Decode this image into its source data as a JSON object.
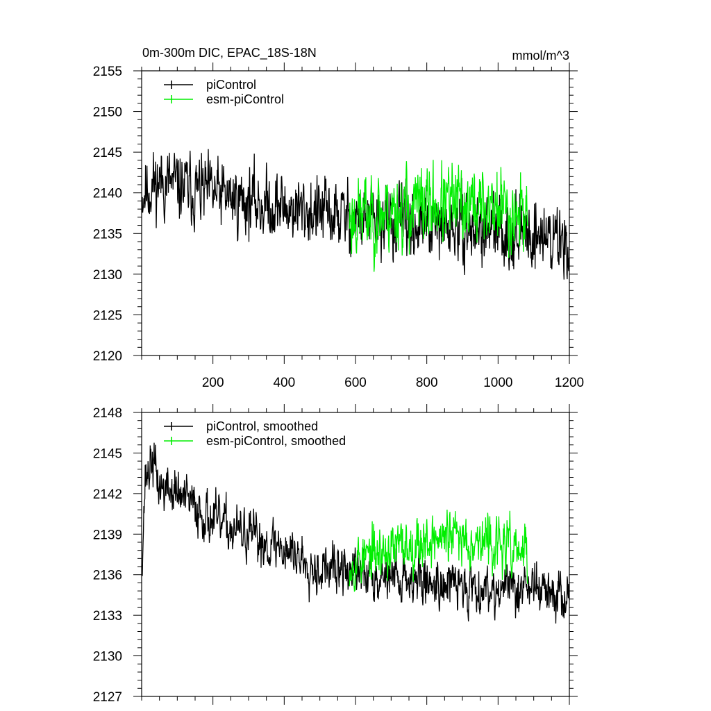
{
  "chart_data": [
    {
      "type": "line",
      "title": "0m-300m DIC, EPAC_18S-18N",
      "units_label": "mmol/m^3",
      "xlim": [
        0,
        1200
      ],
      "ylim": [
        2120,
        2155
      ],
      "x_ticks": [
        200,
        400,
        600,
        800,
        1000,
        1200
      ],
      "x_tick_labels": [
        "200",
        "400",
        "600",
        "800",
        "1000",
        "1200"
      ],
      "y_ticks": [
        2120,
        2125,
        2130,
        2135,
        2140,
        2145,
        2150,
        2155
      ],
      "y_tick_labels": [
        "2120",
        "2125",
        "2130",
        "2135",
        "2140",
        "2145",
        "2150",
        "2155"
      ],
      "legend_position": "top-left",
      "grid": false,
      "series": [
        {
          "name": "piControl",
          "color": "#000000",
          "x": [
            1,
            1200
          ],
          "anchors": [
            [
              1,
              2140
            ],
            [
              50,
              2141.5
            ],
            [
              100,
              2140.8
            ],
            [
              200,
              2139.8
            ],
            [
              300,
              2139
            ],
            [
              400,
              2138.2
            ],
            [
              500,
              2137.5
            ],
            [
              600,
              2136.8
            ],
            [
              700,
              2136.3
            ],
            [
              800,
              2135.8
            ],
            [
              900,
              2135.5
            ],
            [
              1000,
              2135.2
            ],
            [
              1100,
              2135
            ],
            [
              1200,
              2134
            ]
          ],
          "amplitude": 6,
          "seed": 11
        },
        {
          "name": "esm-piControl",
          "color": "#00ee00",
          "x": [
            583,
            1083
          ],
          "anchors": [
            [
              583,
              2137
            ],
            [
              700,
              2137.8
            ],
            [
              800,
              2138.5
            ],
            [
              900,
              2138.5
            ],
            [
              1000,
              2138.2
            ],
            [
              1083,
              2137.5
            ]
          ],
          "amplitude": 7,
          "seed": 23
        }
      ]
    },
    {
      "type": "line",
      "title": "",
      "xlim": [
        0,
        1200
      ],
      "ylim": [
        2127,
        2148
      ],
      "x_ticks": [
        200,
        400,
        600,
        800,
        1000,
        1200
      ],
      "x_tick_labels": [],
      "y_ticks": [
        2127,
        2130,
        2133,
        2136,
        2139,
        2142,
        2145,
        2148
      ],
      "y_tick_labels": [
        "2127",
        "2130",
        "2133",
        "2136",
        "2139",
        "2142",
        "2145",
        "2148"
      ],
      "legend_position": "top-left",
      "grid": false,
      "series": [
        {
          "name": "piControl, smoothed",
          "color": "#000000",
          "x": [
            1,
            1200
          ],
          "anchors": [
            [
              1,
              2137.5
            ],
            [
              10,
              2143
            ],
            [
              30,
              2144.5
            ],
            [
              50,
              2142.5
            ],
            [
              100,
              2142
            ],
            [
              200,
              2140
            ],
            [
              300,
              2138.8
            ],
            [
              400,
              2138
            ],
            [
              500,
              2136.5
            ],
            [
              600,
              2136.2
            ],
            [
              700,
              2136
            ],
            [
              800,
              2135.5
            ],
            [
              900,
              2135.2
            ],
            [
              1000,
              2135
            ],
            [
              1100,
              2135.2
            ],
            [
              1200,
              2134
            ]
          ],
          "amplitude": 2.6,
          "seed": 37
        },
        {
          "name": "esm-piControl, smoothed",
          "color": "#00ee00",
          "x": [
            583,
            1083
          ],
          "anchors": [
            [
              583,
              2137
            ],
            [
              700,
              2137.8
            ],
            [
              800,
              2138.6
            ],
            [
              900,
              2138.8
            ],
            [
              1000,
              2138.2
            ],
            [
              1083,
              2137.5
            ]
          ],
          "amplitude": 2.8,
          "seed": 53
        }
      ]
    }
  ]
}
